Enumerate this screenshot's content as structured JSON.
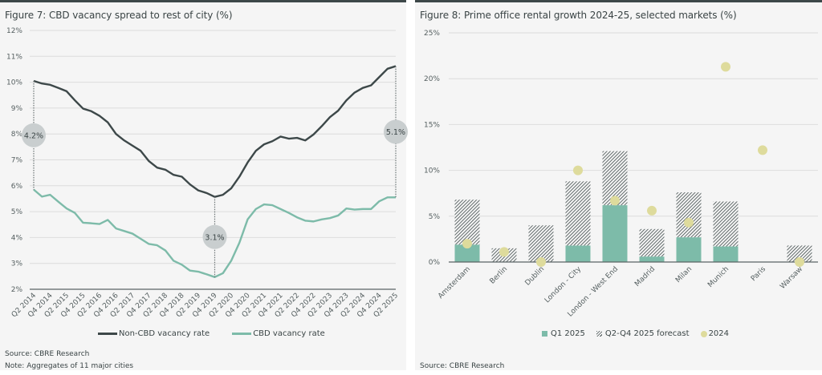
{
  "colors": {
    "non_cbd": "#3d4849",
    "cbd": "#7dbba9",
    "q1_2025": "#7dbba9",
    "forecast_hatch": "#3d4849",
    "dot_2024": "#dedb9c",
    "callout": "#c9cecf",
    "grid": "#dcdcdc",
    "axis": "#5b6566"
  },
  "chart_data": [
    {
      "type": "line",
      "title": "Figure 7: CBD vacancy spread to rest of city (%)",
      "xlabel": "",
      "ylabel": "",
      "ylim": [
        2,
        12
      ],
      "yticks": [
        2,
        3,
        4,
        5,
        6,
        7,
        8,
        9,
        10,
        11,
        12
      ],
      "ytick_labels": [
        "2%",
        "3%",
        "4%",
        "5%",
        "6%",
        "7%",
        "8%",
        "9%",
        "10%",
        "11%",
        "12%"
      ],
      "x": [
        "Q2 2014",
        "Q3 2014",
        "Q4 2014",
        "Q1 2015",
        "Q2 2015",
        "Q3 2015",
        "Q4 2015",
        "Q1 2016",
        "Q2 2016",
        "Q3 2016",
        "Q4 2016",
        "Q1 2017",
        "Q2 2017",
        "Q3 2017",
        "Q4 2017",
        "Q1 2018",
        "Q2 2018",
        "Q3 2018",
        "Q4 2018",
        "Q1 2019",
        "Q2 2019",
        "Q3 2019",
        "Q4 2019",
        "Q1 2020",
        "Q2 2020",
        "Q3 2020",
        "Q4 2020",
        "Q1 2021",
        "Q2 2021",
        "Q3 2021",
        "Q4 2021",
        "Q1 2022",
        "Q2 2022",
        "Q3 2022",
        "Q4 2022",
        "Q1 2023",
        "Q2 2023",
        "Q3 2023",
        "Q4 2023",
        "Q1 2024",
        "Q2 2024",
        "Q3 2024",
        "Q4 2024",
        "Q1 2025",
        "Q2 2025"
      ],
      "xtick_labels": [
        "Q2 2014",
        "Q4 2014",
        "Q2 2015",
        "Q4 2015",
        "Q2 2016",
        "Q4 2016",
        "Q2 2017",
        "Q4 2017",
        "Q2 2018",
        "Q4 2018",
        "Q2 2019",
        "Q4 2019",
        "Q2 2020",
        "Q4 2020",
        "Q2 2021",
        "Q4 2021",
        "Q2 2022",
        "Q4 2022",
        "Q2 2023",
        "Q4 2023",
        "Q2 2024",
        "Q4 2024",
        "Q2 2025"
      ],
      "series": [
        {
          "name": "Non-CBD vacancy rate",
          "values": [
            10.05,
            9.95,
            9.9,
            9.78,
            9.65,
            9.3,
            8.98,
            8.88,
            8.7,
            8.45,
            8.0,
            7.75,
            7.55,
            7.35,
            6.95,
            6.7,
            6.62,
            6.42,
            6.35,
            6.05,
            5.82,
            5.72,
            5.57,
            5.65,
            5.9,
            6.35,
            6.9,
            7.35,
            7.6,
            7.72,
            7.9,
            7.82,
            7.85,
            7.75,
            7.98,
            8.3,
            8.65,
            8.9,
            9.3,
            9.6,
            9.78,
            9.88,
            10.2,
            10.52,
            10.62
          ]
        },
        {
          "name": "CBD vacancy rate",
          "values": [
            5.85,
            5.58,
            5.65,
            5.38,
            5.12,
            4.95,
            4.57,
            4.55,
            4.52,
            4.68,
            4.35,
            4.25,
            4.15,
            3.95,
            3.75,
            3.7,
            3.5,
            3.1,
            2.95,
            2.72,
            2.68,
            2.58,
            2.47,
            2.62,
            3.1,
            3.8,
            4.7,
            5.1,
            5.28,
            5.25,
            5.1,
            4.95,
            4.78,
            4.65,
            4.62,
            4.7,
            4.75,
            4.85,
            5.12,
            5.08,
            5.1,
            5.1,
            5.4,
            5.55,
            5.55
          ]
        }
      ],
      "annotations": [
        {
          "x": "Q2 2014",
          "label": "4.2%"
        },
        {
          "x": "Q4 2019",
          "label": "3.1%"
        },
        {
          "x": "Q2 2025",
          "label": "5.1%"
        }
      ],
      "legend": [
        "Non-CBD vacancy rate",
        "CBD vacancy rate"
      ],
      "legend_position": "bottom",
      "grid": true
    },
    {
      "type": "bar",
      "title": "Figure 8: Prime office rental growth 2024-25, selected markets (%)",
      "xlabel": "",
      "ylabel": "",
      "ylim": [
        0,
        25
      ],
      "yticks": [
        0,
        5,
        10,
        15,
        20,
        25
      ],
      "ytick_labels": [
        "0%",
        "5%",
        "10%",
        "15%",
        "20%",
        "25%"
      ],
      "categories": [
        "Amsterdam",
        "Berlin",
        "Dublin",
        "London - City",
        "London - West End",
        "Madrid",
        "Milan",
        "Munich",
        "Paris",
        "Warsaw"
      ],
      "series": [
        {
          "name": "Q1 2025",
          "kind": "stacked-bar",
          "values": [
            1.9,
            0,
            0,
            1.8,
            6.2,
            0.6,
            2.7,
            1.7,
            0,
            0
          ]
        },
        {
          "name": "Q2-Q4 2025 forecast",
          "kind": "stacked-bar-hatched",
          "values": [
            4.9,
            1.5,
            4.0,
            7.0,
            5.9,
            3.0,
            4.9,
            4.9,
            0,
            1.8
          ]
        },
        {
          "name": "2024",
          "kind": "scatter",
          "values": [
            2.0,
            1.1,
            0.0,
            10.0,
            6.7,
            5.6,
            4.3,
            21.3,
            12.2,
            0.0
          ]
        }
      ],
      "legend": [
        "Q1 2025",
        "Q2-Q4 2025 forecast",
        "2024"
      ],
      "legend_position": "bottom",
      "grid": true
    }
  ],
  "left": {
    "source": "Source: CBRE Research",
    "note": "Note: Aggregates of 11 major cities"
  },
  "right": {
    "source": "Source: CBRE Research"
  }
}
